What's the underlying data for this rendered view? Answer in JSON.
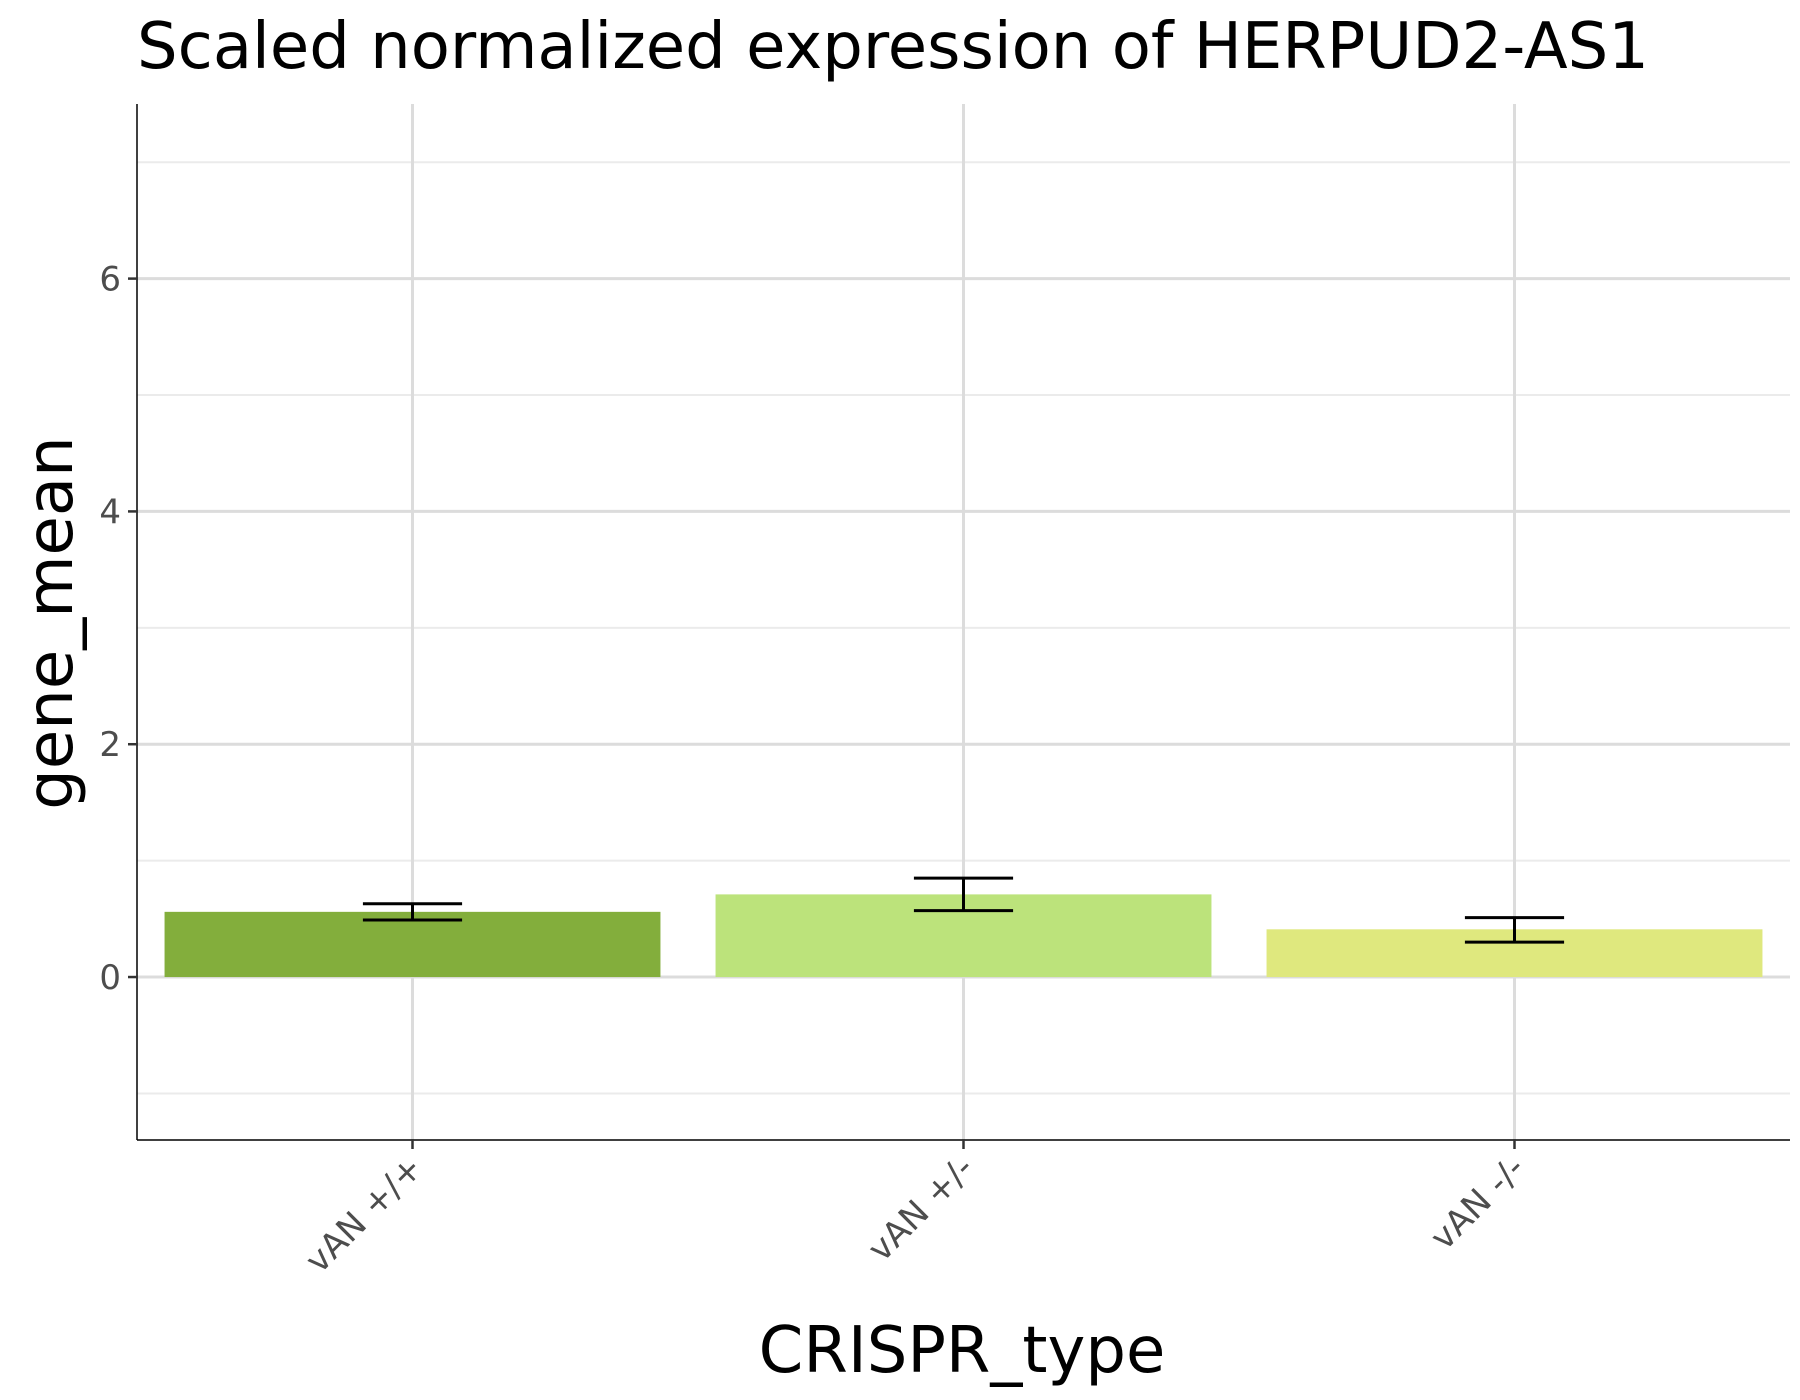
{
  "chart_data": {
    "type": "bar",
    "title": "Scaled normalized expression of HERPUD2-AS1",
    "xlabel": "CRISPR_type",
    "ylabel": "gene_mean",
    "categories": [
      "vAN +/+",
      "vAN +/-",
      "vAN -/-"
    ],
    "values": [
      0.56,
      0.71,
      0.41
    ],
    "error_low": [
      0.49,
      0.57,
      0.3
    ],
    "error_high": [
      0.63,
      0.85,
      0.51
    ],
    "colors": [
      "#83ae3c",
      "#bce37b",
      "#dfe87e"
    ],
    "ylim": [
      -1.4,
      7.5
    ],
    "yticks": [
      0,
      2,
      4,
      6
    ],
    "grid": true,
    "legend": "none"
  }
}
